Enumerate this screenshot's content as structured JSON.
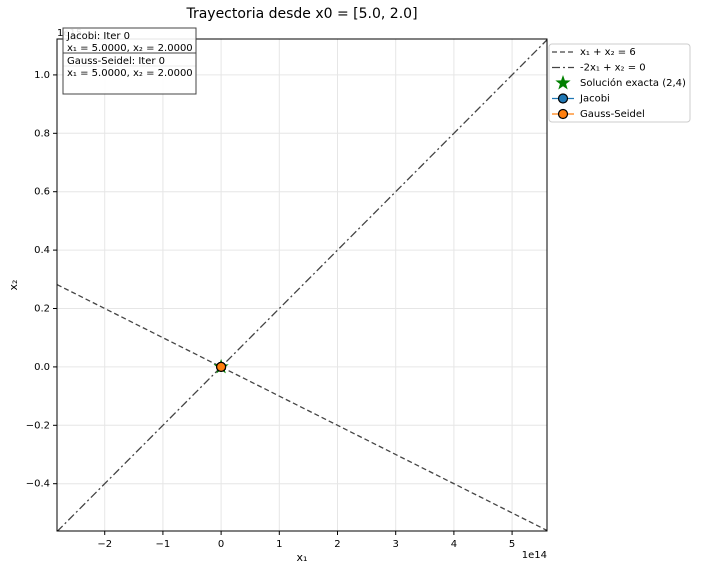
{
  "chart_data": {
    "type": "line",
    "title": "Trayectoria desde x0 = [5.0, 2.0]",
    "xlabel": "x₁",
    "ylabel": "x₂",
    "x_offset_label": "1e14",
    "y_offset_label": "1e15",
    "xlim": [
      -2.82,
      5.6
    ],
    "ylim": [
      -0.562,
      1.123
    ],
    "xticks": [
      {
        "value": -2,
        "label": "−2"
      },
      {
        "value": -1,
        "label": "−1"
      },
      {
        "value": 0,
        "label": "0"
      },
      1,
      2,
      3,
      4,
      5
    ],
    "yticks": [
      {
        "value": -0.4,
        "label": "−0.4"
      },
      {
        "value": -0.2,
        "label": "−0.2"
      },
      {
        "value": 0,
        "label": "0.0"
      },
      0.2,
      0.4,
      0.6,
      0.8,
      {
        "value": 1,
        "label": "1.0"
      }
    ],
    "grid": true,
    "legend": "outside right",
    "series": [
      {
        "name": "x₁ + x₂ = 6",
        "color": "#444444",
        "linestyle": "dashed",
        "x": [
          -2.82,
          5.6
        ],
        "values": [
          0.282,
          -0.56
        ]
      },
      {
        "name": "-2x₁ + x₂ = 0",
        "color": "#444444",
        "linestyle": "dashdot",
        "x": [
          -2.82,
          5.6
        ],
        "values": [
          -0.564,
          1.12
        ]
      },
      {
        "name": "Solución exacta (2,4)",
        "color": "#008000",
        "marker": "star",
        "x": [
          0
        ],
        "values": [
          0
        ]
      },
      {
        "name": "Jacobi",
        "color": "#1f77b4",
        "marker": "circle",
        "linestyle": "solid",
        "x": [
          0
        ],
        "values": [
          0
        ]
      },
      {
        "name": "Gauss-Seidel",
        "color": "#ff7f0e",
        "marker": "circle",
        "linestyle": "solid",
        "x": [
          0
        ],
        "values": [
          0
        ]
      }
    ],
    "annotations": [
      [
        "Jacobi: Iter 0",
        "x₁ = 5.0000, x₂ = 2.0000"
      ],
      [
        "Gauss-Seidel: Iter 0",
        "x₁ = 5.0000, x₂ = 2.0000"
      ]
    ]
  }
}
